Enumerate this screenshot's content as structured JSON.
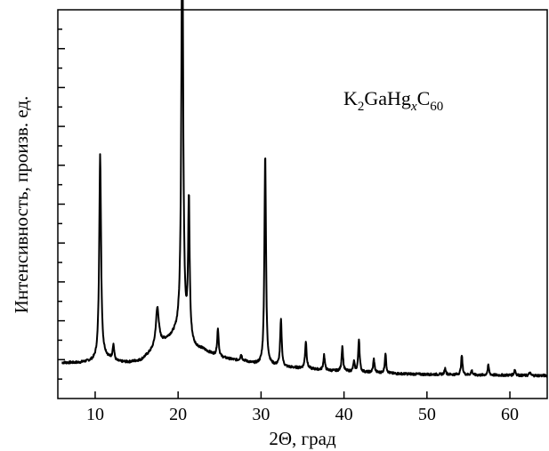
{
  "chart_data": {
    "type": "line",
    "xlabel": "2Θ, град",
    "ylabel": "Интенсивность, произв. ед.",
    "xlim": [
      5.5,
      64.5
    ],
    "ylim": [
      0,
      100
    ],
    "x_ticks": [
      10,
      20,
      30,
      40,
      50,
      60
    ],
    "x_tick_labels": [
      "10",
      "20",
      "30",
      "40",
      "50",
      "60"
    ],
    "y_ticks_labeled": false,
    "grid": false,
    "annotation": {
      "base": "K",
      "sub1": "2",
      "mid": "GaHg",
      "sub2": "x",
      "end": "C",
      "sub3": "60"
    },
    "series": [
      {
        "baseline": [
          [
            6.0,
            9.2
          ],
          [
            8.0,
            9.2
          ],
          [
            10.0,
            9.6
          ],
          [
            11.2,
            10.6
          ],
          [
            12.5,
            9.4
          ],
          [
            14.0,
            9.3
          ],
          [
            15.5,
            9.8
          ],
          [
            16.8,
            12.0
          ],
          [
            18.0,
            14.2
          ],
          [
            19.2,
            15.8
          ],
          [
            20.0,
            16.8
          ],
          [
            21.0,
            15.2
          ],
          [
            22.0,
            13.0
          ],
          [
            23.0,
            12.5
          ],
          [
            24.0,
            11.5
          ],
          [
            25.0,
            10.6
          ],
          [
            26.0,
            10.2
          ],
          [
            27.0,
            9.8
          ],
          [
            28.0,
            9.6
          ],
          [
            29.0,
            9.0
          ],
          [
            30.0,
            8.6
          ],
          [
            31.0,
            8.5
          ],
          [
            32.0,
            8.3
          ],
          [
            33.0,
            8.0
          ],
          [
            34.0,
            7.9
          ],
          [
            36.0,
            7.6
          ],
          [
            38.0,
            7.2
          ],
          [
            40.0,
            7.0
          ],
          [
            42.0,
            6.8
          ],
          [
            44.0,
            6.6
          ],
          [
            46.0,
            6.4
          ],
          [
            48.0,
            6.3
          ],
          [
            50.0,
            6.2
          ],
          [
            52.0,
            6.2
          ],
          [
            54.0,
            6.1
          ],
          [
            56.0,
            6.0
          ],
          [
            58.0,
            6.0
          ],
          [
            60.0,
            6.0
          ],
          [
            62.0,
            5.9
          ],
          [
            64.5,
            5.9
          ]
        ],
        "peaks": [
          {
            "x": 10.6,
            "height": 53.0,
            "width": 0.13
          },
          {
            "x": 12.2,
            "height": 4.0,
            "width": 0.12
          },
          {
            "x": 17.5,
            "height": 10.0,
            "width": 0.22
          },
          {
            "x": 20.5,
            "height": 109.0,
            "width": 0.13
          },
          {
            "x": 21.3,
            "height": 36.0,
            "width": 0.11
          },
          {
            "x": 24.8,
            "height": 7.0,
            "width": 0.11
          },
          {
            "x": 27.6,
            "height": 1.5,
            "width": 0.12
          },
          {
            "x": 30.5,
            "height": 55.0,
            "width": 0.11
          },
          {
            "x": 32.4,
            "height": 12.0,
            "width": 0.11
          },
          {
            "x": 35.4,
            "height": 7.0,
            "width": 0.11
          },
          {
            "x": 37.6,
            "height": 4.0,
            "width": 0.1
          },
          {
            "x": 39.8,
            "height": 6.5,
            "width": 0.1
          },
          {
            "x": 41.2,
            "height": 2.5,
            "width": 0.1
          },
          {
            "x": 41.8,
            "height": 8.5,
            "width": 0.1
          },
          {
            "x": 43.6,
            "height": 3.5,
            "width": 0.1
          },
          {
            "x": 45.0,
            "height": 5.0,
            "width": 0.1
          },
          {
            "x": 52.2,
            "height": 1.5,
            "width": 0.1
          },
          {
            "x": 54.2,
            "height": 5.0,
            "width": 0.1
          },
          {
            "x": 55.4,
            "height": 1.2,
            "width": 0.1
          },
          {
            "x": 57.4,
            "height": 2.5,
            "width": 0.1
          },
          {
            "x": 60.6,
            "height": 1.5,
            "width": 0.1
          },
          {
            "x": 62.4,
            "height": 0.8,
            "width": 0.1
          }
        ]
      }
    ],
    "colors": {
      "line": "#000000",
      "axis": "#000000",
      "background": "#ffffff"
    }
  }
}
